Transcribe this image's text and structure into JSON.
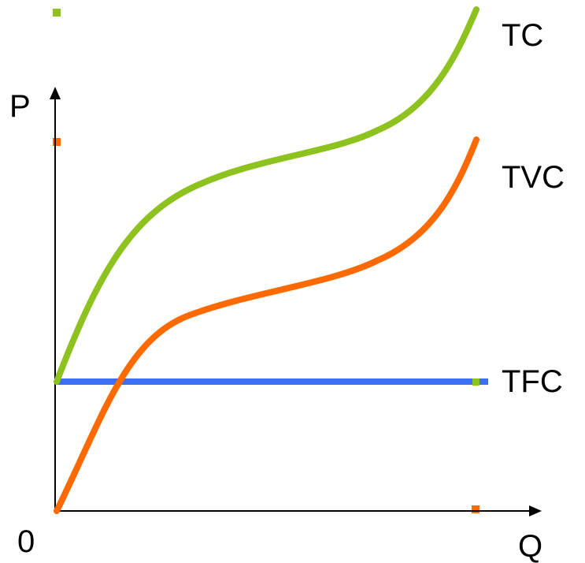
{
  "axes": {
    "y_label": "P",
    "x_label": "Q",
    "origin_label": "0"
  },
  "curves": {
    "tc": {
      "label": "TC",
      "color": "#8dc21f"
    },
    "tvc": {
      "label": "TVC",
      "color": "#ff6a00"
    },
    "tfc": {
      "label": "TFC",
      "color": "#3d6ff5"
    }
  }
}
